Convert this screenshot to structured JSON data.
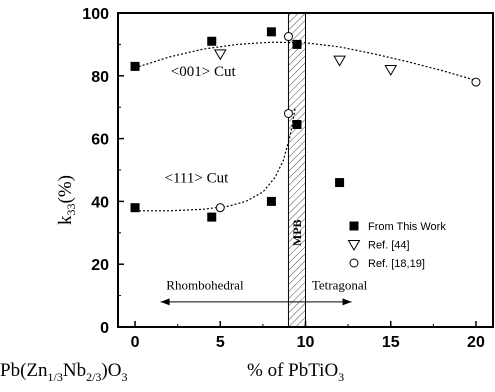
{
  "chart_data": {
    "type": "scatter",
    "title": "",
    "xlabel": "% of PbTiO",
    "xlabel_sub": "3",
    "composition_label": {
      "p1": "Pb(Zn",
      "s1": "1/3",
      "p2": "Nb",
      "s2": "2/3",
      "p3": ")O",
      "s3": "3"
    },
    "ylabel": "k",
    "ylabel_sub": "33",
    "ylabel_suffix": "(%)",
    "xlim": [
      -1,
      21
    ],
    "ylim": [
      0,
      100
    ],
    "xticks": [
      0,
      5,
      10,
      15,
      20
    ],
    "yticks": [
      0,
      20,
      40,
      60,
      80,
      100
    ],
    "mpb": {
      "label": "MPB",
      "x_range": [
        9,
        10
      ]
    },
    "series": [
      {
        "name": "From This Work",
        "marker": "filled-square",
        "points": [
          [
            0,
            83
          ],
          [
            4.5,
            91
          ],
          [
            8,
            94
          ],
          [
            9.5,
            90
          ],
          [
            0,
            38
          ],
          [
            4.5,
            35
          ],
          [
            8,
            40
          ],
          [
            9.5,
            64.5
          ],
          [
            12,
            46
          ]
        ]
      },
      {
        "name": "Ref. [44]",
        "marker": "open-triangle-down",
        "points": [
          [
            5,
            87
          ],
          [
            12,
            85
          ],
          [
            15,
            82
          ]
        ]
      },
      {
        "name": "Ref. [18,19]",
        "marker": "open-circle",
        "points": [
          [
            5,
            38
          ],
          [
            9,
            92.5
          ],
          [
            9,
            68
          ],
          [
            20,
            78
          ]
        ]
      }
    ],
    "fit_curves": [
      {
        "label": "<001> Cut",
        "label_at": [
          4,
          80
        ],
        "points": [
          [
            0,
            82.5
          ],
          [
            2,
            86
          ],
          [
            4,
            88.5
          ],
          [
            6,
            90
          ],
          [
            8,
            90.7
          ],
          [
            10,
            90.5
          ],
          [
            12,
            89.2
          ],
          [
            14,
            87
          ],
          [
            16,
            84.5
          ],
          [
            18,
            81.7
          ],
          [
            20,
            78.5
          ]
        ]
      },
      {
        "label": "<111> Cut",
        "label_at": [
          3.6,
          46
        ],
        "points": [
          [
            0,
            37
          ],
          [
            2,
            37
          ],
          [
            4,
            37.5
          ],
          [
            5.5,
            38.5
          ],
          [
            6.5,
            40
          ],
          [
            7.5,
            43
          ],
          [
            8.2,
            47.5
          ],
          [
            8.7,
            53
          ],
          [
            9.1,
            61
          ],
          [
            9.4,
            70
          ]
        ]
      }
    ],
    "phase_regions": [
      {
        "label": "Rhombohedral",
        "label_at": [
          4.1,
          12
        ],
        "arrow_to": 1.5
      },
      {
        "label": "Tetragonal",
        "label_at": [
          12,
          12
        ],
        "arrow_to": 12.7
      }
    ],
    "phase_arrow_y": 8,
    "legend_position": "lower-right",
    "grid": false
  }
}
